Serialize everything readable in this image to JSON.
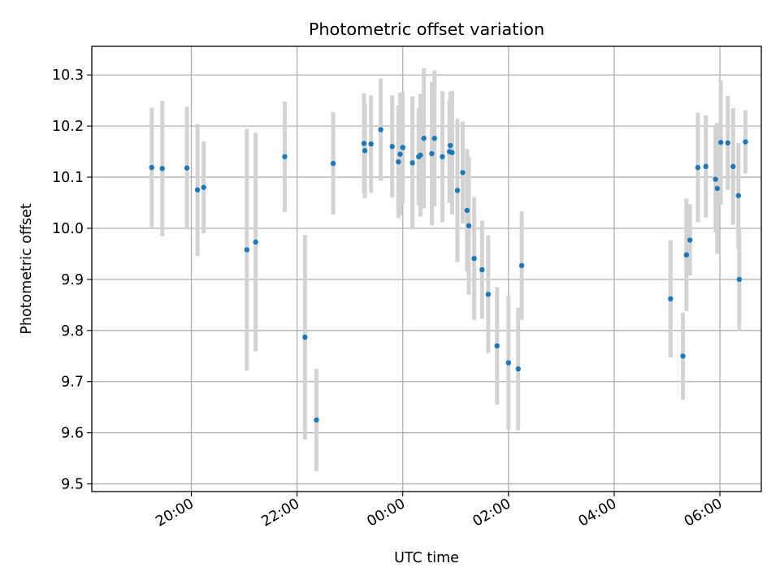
{
  "chart_data": {
    "type": "scatter",
    "title": "Photometric offset variation",
    "xlabel": "UTC time",
    "ylabel": "Photometric offset",
    "xlim": [
      "18:07",
      "06:47"
    ],
    "ylim": [
      9.485,
      10.356
    ],
    "grid": true,
    "x_ticks": [
      "20:00",
      "22:00",
      "00:00",
      "02:00",
      "04:00",
      "06:00"
    ],
    "y_ticks": [
      "9.5",
      "9.6",
      "9.7",
      "9.8",
      "9.9",
      "10.0",
      "10.1",
      "10.2",
      "10.3"
    ],
    "colors": {
      "points": "#1f77b4",
      "errorbars": "#d3d3d3",
      "grid": "#b0b0b0"
    },
    "series": [
      {
        "x": [
          "19:15",
          "19:27",
          "19:55",
          "20:07",
          "20:14",
          "21:03",
          "21:13",
          "21:46",
          "22:09",
          "22:22",
          "22:41",
          "23:16",
          "23:17",
          "23:24",
          "23:35",
          "23:48",
          "23:55",
          "23:57",
          "24:00",
          "24:11",
          "24:18",
          "24:20",
          "24:24",
          "24:33",
          "24:36",
          "24:45",
          "24:53",
          "24:54",
          "24:56",
          "25:02",
          "25:08",
          "25:13",
          "25:15",
          "25:21",
          "25:30",
          "25:37",
          "25:47",
          "26:00",
          "26:11",
          "26:15",
          "29:04",
          "29:18",
          "29:22",
          "29:26",
          "29:35",
          "29:44",
          "29:55",
          "29:57",
          "30:01",
          "30:09",
          "30:15",
          "30:21",
          "30:22",
          "30:29"
        ],
        "y": [
          10.119,
          10.117,
          10.118,
          10.075,
          10.08,
          9.958,
          9.973,
          10.14,
          9.787,
          9.625,
          10.127,
          10.166,
          10.152,
          10.165,
          10.193,
          10.16,
          10.13,
          10.145,
          10.158,
          10.128,
          10.14,
          10.143,
          10.176,
          10.146,
          10.176,
          10.14,
          10.15,
          10.162,
          10.148,
          10.074,
          10.109,
          10.035,
          10.005,
          9.941,
          9.919,
          9.871,
          9.77,
          9.737,
          9.725,
          9.927,
          9.862,
          9.75,
          9.948,
          9.977,
          10.119,
          10.121,
          10.096,
          10.078,
          10.168,
          10.167,
          10.121,
          10.064,
          9.9,
          10.169
        ],
        "err": [
          0.117,
          0.133,
          0.12,
          0.129,
          0.09,
          0.236,
          0.214,
          0.108,
          0.2,
          0.1,
          0.1,
          0.098,
          0.093,
          0.095,
          0.1,
          0.1,
          0.11,
          0.12,
          0.11,
          0.13,
          0.095,
          0.12,
          0.137,
          0.14,
          0.133,
          0.128,
          0.1,
          0.105,
          0.121,
          0.14,
          0.1,
          0.12,
          0.135,
          0.12,
          0.096,
          0.115,
          0.115,
          0.131,
          0.12,
          0.106,
          0.115,
          0.085,
          0.11,
          0.07,
          0.107,
          0.1,
          0.104,
          0.128,
          0.122,
          0.092,
          0.114,
          0.103,
          0.1,
          0.062
        ]
      }
    ]
  }
}
